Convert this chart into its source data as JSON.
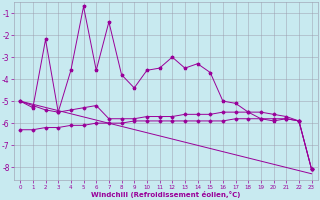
{
  "x": [
    0,
    1,
    2,
    3,
    4,
    5,
    6,
    7,
    8,
    9,
    10,
    11,
    12,
    13,
    14,
    15,
    16,
    17,
    18,
    19,
    20,
    21,
    22,
    23
  ],
  "line1": [
    -5.0,
    -5.3,
    -2.2,
    -5.5,
    -3.6,
    -0.7,
    -3.6,
    -1.4,
    -3.8,
    -4.4,
    -3.6,
    -3.5,
    -3.0,
    -3.5,
    -3.3,
    -3.7,
    -5.0,
    -5.1,
    -5.5,
    -5.8,
    -5.9,
    -5.8,
    -5.9,
    -8.1
  ],
  "line2": [
    -5.0,
    -5.2,
    -5.4,
    -5.5,
    -5.4,
    -5.3,
    -5.2,
    -5.8,
    -5.8,
    -5.8,
    -5.7,
    -5.7,
    -5.7,
    -5.6,
    -5.6,
    -5.6,
    -5.5,
    -5.5,
    -5.5,
    -5.5,
    -5.6,
    -5.7,
    -5.9,
    -8.1
  ],
  "line3": [
    -6.3,
    -6.3,
    -6.2,
    -6.2,
    -6.1,
    -6.1,
    -6.0,
    -6.0,
    -6.0,
    -5.9,
    -5.9,
    -5.9,
    -5.9,
    -5.9,
    -5.9,
    -5.9,
    -5.9,
    -5.8,
    -5.8,
    -5.8,
    -5.8,
    -5.8,
    -5.9,
    -8.1
  ],
  "line4_x": [
    0,
    23
  ],
  "line4_y": [
    -5.0,
    -8.3
  ],
  "bg_color": "#c8eaf0",
  "line_color": "#990099",
  "grid_color": "#9999aa",
  "xlabel": "Windchill (Refroidissement éolien,°C)",
  "ylim": [
    -8.6,
    -0.5
  ],
  "xlim": [
    -0.5,
    23.5
  ],
  "yticks": [
    -8,
    -7,
    -6,
    -5,
    -4,
    -3,
    -2,
    -1
  ],
  "xticks": [
    0,
    1,
    2,
    3,
    4,
    5,
    6,
    7,
    8,
    9,
    10,
    11,
    12,
    13,
    14,
    15,
    16,
    17,
    18,
    19,
    20,
    21,
    22,
    23
  ]
}
